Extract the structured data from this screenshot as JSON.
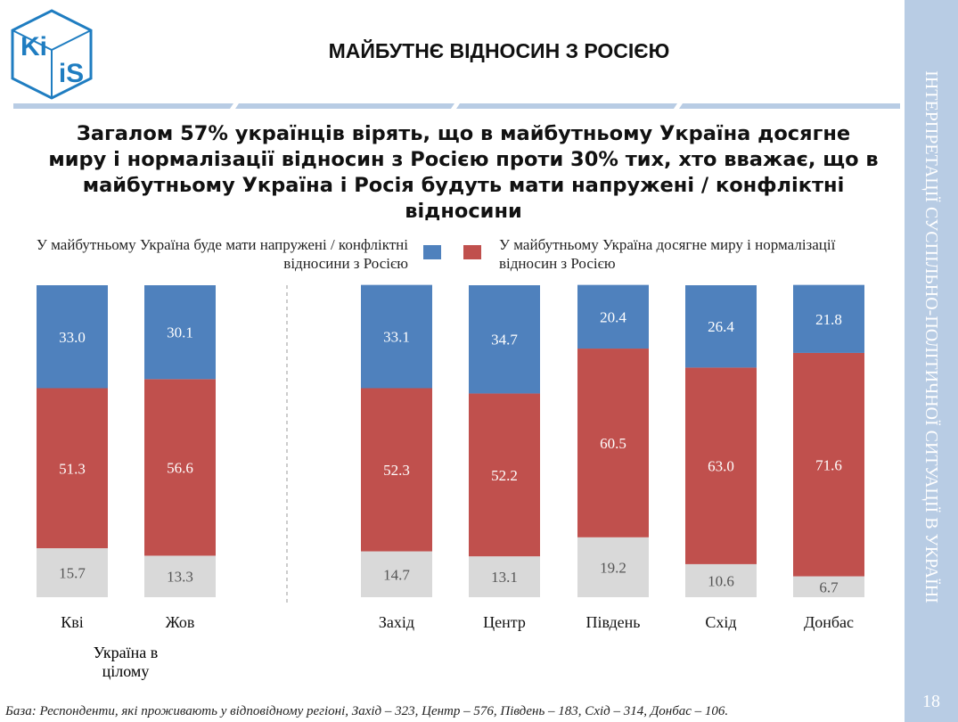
{
  "header": {
    "title": "МАЙБУТНЄ ВІДНОСИН З РОСІЄЮ",
    "logo_top": "Ki",
    "logo_bottom": "iS"
  },
  "sidebar": {
    "text": "ІНТЕРПРЕТАЦІЇ СУСПІЛЬНО-ПОЛІТИЧНОЇ СИТУАЦІЇ В УКРАЇНІ",
    "page_number": "18"
  },
  "footer": "База: Респонденти, які проживають у відповідному регіоні, Захід – 323, Центр – 576, Південь – 183, Схід – 314, Донбас – 106.",
  "chart_data": {
    "type": "stacked_bar",
    "subtitle": "Загалом 57% українців вірять, що в майбутньому Україна досягне миру і нормалізації відносин з Росією проти 30% тих, хто вважає, що в майбутньому Україна і Росія будуть мати напружені / конфліктні відносини",
    "categories": [
      "Кві",
      "Жов",
      "Захід",
      "Центр",
      "Південь",
      "Схід",
      "Донбас"
    ],
    "group_label": "Україна в цілому",
    "ylim": [
      0,
      100
    ],
    "series": [
      {
        "name": "У майбутньому Україна буде мати напружені / конфліктні відносини з Росією",
        "color": "#4f81bd",
        "values": [
          33.0,
          30.1,
          33.1,
          34.7,
          20.4,
          26.4,
          21.8
        ],
        "value_labels": [
          "33.0",
          "30.1",
          "33.1",
          "34.7",
          "20.4",
          "26.4",
          "21.8"
        ]
      },
      {
        "name": "У майбутньому Україна досягне миру і нормалізації відносин з Росією",
        "color": "#c0504d",
        "values": [
          51.3,
          56.6,
          52.3,
          52.2,
          60.5,
          63.0,
          71.6
        ],
        "value_labels": [
          "51.3",
          "56.6",
          "52.3",
          "52.2",
          "60.5",
          "63.0",
          "71.6"
        ]
      },
      {
        "color": "#d9d9d9",
        "values": [
          15.7,
          13.3,
          14.7,
          13.1,
          19.2,
          10.6,
          6.7
        ],
        "value_labels": [
          "15.7",
          "13.3",
          "14.7",
          "13.1",
          "19.2",
          "10.6",
          "6.7"
        ]
      }
    ]
  }
}
